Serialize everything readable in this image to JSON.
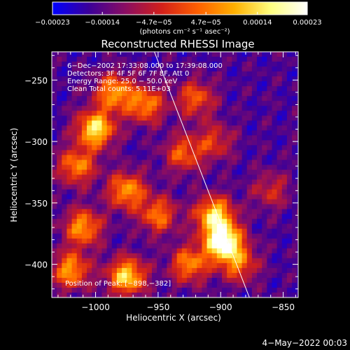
{
  "chart_data": {
    "type": "heatmap",
    "title": "Reconstructed RHESSI Image",
    "xlabel": "Heliocentric X (arcsec)",
    "ylabel": "Heliocentric Y (arcsec)",
    "xlim": [
      -1035,
      -838
    ],
    "ylim": [
      -427,
      -227
    ],
    "x_ticks": [
      -1000,
      -950,
      -900,
      -850
    ],
    "y_ticks": [
      -250,
      -300,
      -350,
      -400
    ],
    "x_tick_labels": [
      "−1000",
      "−950",
      "−900",
      "−850"
    ],
    "y_tick_labels": [
      "−250",
      "−300",
      "−350",
      "−400"
    ],
    "colorbar": {
      "range": [
        -0.00023,
        0.00023
      ],
      "tick_values": [
        -0.00023,
        -0.00014,
        -4.7e-05,
        4.7e-05,
        0.00014,
        0.00023
      ],
      "tick_labels": [
        "−0.00023",
        "−0.00014",
        "−4.7e−05",
        "4.7e−05",
        "0.00014",
        "0.00023"
      ],
      "unit_label": "(photons cm⁻² s⁻¹ asec⁻²)",
      "colors": [
        "#0000ff",
        "#3b0099",
        "#8a0d62",
        "#d2201a",
        "#ff6000",
        "#ffb000",
        "#ffff80",
        "#ffffff"
      ]
    },
    "annotations": [
      "6−Dec−2002 17:33:08.000 to 17:39:08.000",
      "Detectors: 3F 4F 5F 6F 7F 8F, Att 0",
      "Energy Range: 25.0 − 50.0 keV",
      "Clean    Total counts: 5.11E+03"
    ],
    "peak_label": "Position of Peak:  [−898,−382]",
    "peak": [
      -898,
      -382
    ],
    "limb_line": [
      [
        -953,
        -227
      ],
      [
        -877,
        -427
      ]
    ],
    "bright_sources": [
      {
        "x": -1000,
        "y": -290,
        "level": 0.8
      },
      {
        "x": -985,
        "y": -260,
        "level": 0.6
      },
      {
        "x": -960,
        "y": -270,
        "level": 0.55
      },
      {
        "x": -1015,
        "y": -320,
        "level": 0.55
      },
      {
        "x": -975,
        "y": -340,
        "level": 0.6
      },
      {
        "x": -950,
        "y": -360,
        "level": 0.5
      },
      {
        "x": -1010,
        "y": -370,
        "level": 0.6
      },
      {
        "x": -975,
        "y": -410,
        "level": 0.75
      },
      {
        "x": -1020,
        "y": -405,
        "level": 0.6
      },
      {
        "x": -930,
        "y": -310,
        "level": 0.45
      },
      {
        "x": -920,
        "y": -265,
        "level": 0.45
      },
      {
        "x": -905,
        "y": -300,
        "level": 0.35
      },
      {
        "x": -898,
        "y": -382,
        "level": 1.0
      },
      {
        "x": -905,
        "y": -360,
        "level": 0.75
      },
      {
        "x": -925,
        "y": -400,
        "level": 0.55
      },
      {
        "x": -885,
        "y": -400,
        "level": 0.45
      },
      {
        "x": -860,
        "y": -340,
        "level": 0.3
      }
    ]
  },
  "footer": {
    "timestamp": "4−May−2022 00:03"
  }
}
